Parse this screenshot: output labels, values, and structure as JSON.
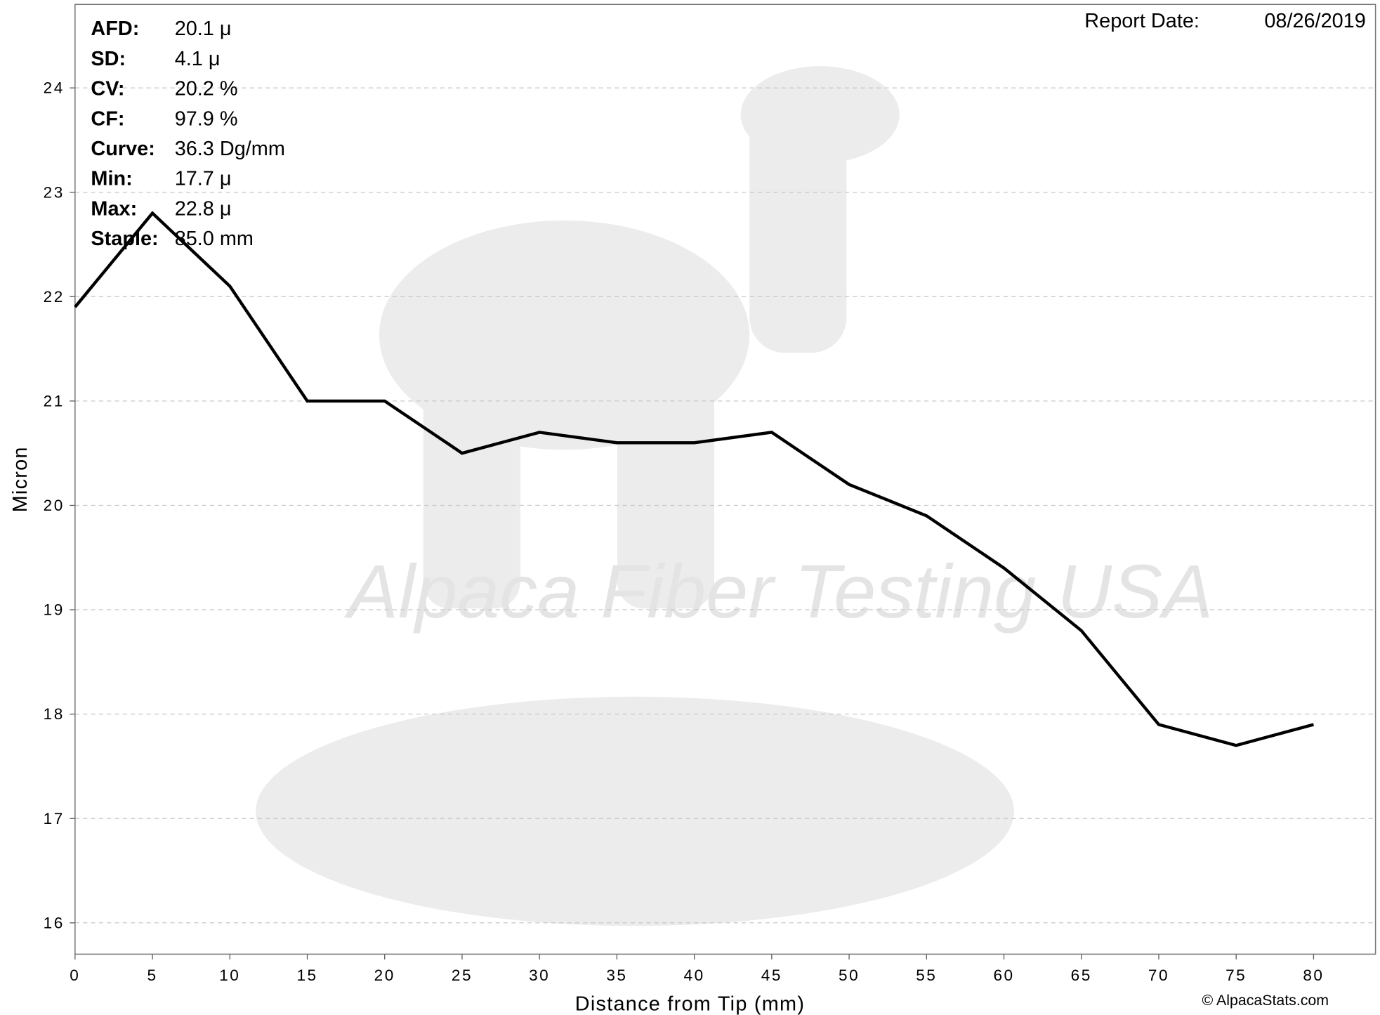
{
  "chart_data": {
    "type": "line",
    "x_label": "Distance from Tip (mm)",
    "y_label": "Micron",
    "x": [
      0,
      5,
      10,
      15,
      20,
      25,
      30,
      35,
      40,
      45,
      50,
      55,
      60,
      65,
      70,
      75,
      80
    ],
    "series": [
      {
        "name": "Micron",
        "color": "#000000",
        "values": [
          21.9,
          22.8,
          22.1,
          21.0,
          21.0,
          20.5,
          20.7,
          20.6,
          20.6,
          20.7,
          20.2,
          19.9,
          19.4,
          18.8,
          17.9,
          17.7,
          17.9
        ]
      }
    ],
    "xlim": [
      0,
      84
    ],
    "ylim": [
      15.7,
      24.8
    ],
    "xticks": [
      0,
      5,
      10,
      15,
      20,
      25,
      30,
      35,
      40,
      45,
      50,
      55,
      60,
      65,
      70,
      75,
      80
    ],
    "yticks": [
      16,
      17,
      18,
      19,
      20,
      21,
      22,
      23,
      24
    ],
    "grid": true,
    "stats": [
      {
        "label": "AFD:",
        "value": "20.1 μ"
      },
      {
        "label": "SD:",
        "value": "4.1 μ"
      },
      {
        "label": "CV:",
        "value": "20.2 %"
      },
      {
        "label": "CF:",
        "value": "97.9 %"
      },
      {
        "label": "Curve:",
        "value": "36.3 Dg/mm"
      },
      {
        "label": "Min:",
        "value": "17.7 μ"
      },
      {
        "label": "Max:",
        "value": "22.8 μ"
      },
      {
        "label": "Staple:",
        "value": "85.0 mm"
      }
    ],
    "report_date_label": "Report Date:",
    "report_date": "08/26/2019",
    "watermark": "Alpaca Fiber Testing USA",
    "credit": "© AlpacaStats.com"
  }
}
